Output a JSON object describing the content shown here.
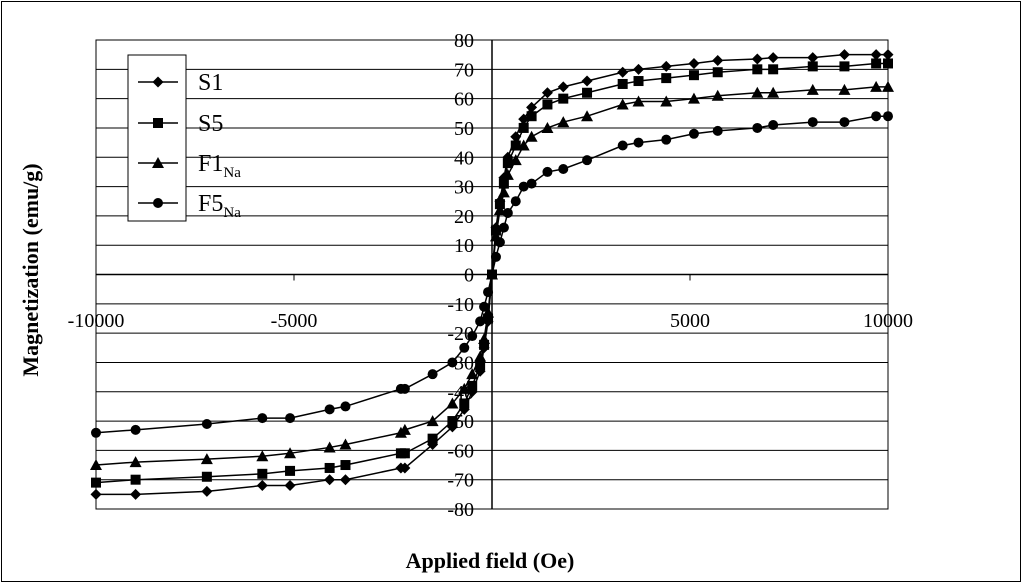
{
  "chart_data": {
    "type": "scatter",
    "xlabel": "Applied field (Oe)",
    "ylabel": "Magnetization (emu/g)",
    "xlim": [
      -10000,
      10000
    ],
    "ylim": [
      -80,
      80
    ],
    "x_ticks": [
      "-10000",
      "-5000",
      "0",
      "5000",
      "10000"
    ],
    "y_ticks": [
      "80",
      "70",
      "60",
      "50",
      "40",
      "30",
      "20",
      "10",
      "0",
      "-10",
      "-20",
      "-30",
      "-40",
      "-50",
      "-60",
      "-70",
      "-80"
    ],
    "grid": "horizontal",
    "legend_position": "top-left",
    "series": [
      {
        "name": "S1",
        "marker": "diamond",
        "x": [
          -10000,
          -9000,
          -7200,
          -5800,
          -5100,
          -4100,
          -3700,
          -2300,
          -2200,
          -1500,
          -1000,
          -700,
          -500,
          -300,
          -200,
          -100,
          0,
          100,
          200,
          300,
          400,
          600,
          800,
          1000,
          1400,
          1800,
          2400,
          3300,
          3700,
          4400,
          5100,
          5700,
          6700,
          7100,
          8100,
          8900,
          9700,
          10000
        ],
        "y": [
          -75,
          -75,
          -74,
          -72,
          -72,
          -70,
          -70,
          -66,
          -66,
          -58,
          -52,
          -46,
          -40,
          -33,
          -25,
          -16,
          0,
          16,
          25,
          33,
          40,
          47,
          53,
          57,
          62,
          64,
          66,
          69,
          70,
          71,
          72,
          73,
          73.5,
          74,
          74,
          75,
          75,
          75
        ]
      },
      {
        "name": "S5",
        "marker": "square",
        "x": [
          -10000,
          -9000,
          -7200,
          -5800,
          -5100,
          -4100,
          -3700,
          -2300,
          -2200,
          -1500,
          -1000,
          -700,
          -500,
          -300,
          -200,
          -100,
          0,
          100,
          200,
          300,
          400,
          600,
          800,
          1000,
          1400,
          1800,
          2400,
          3300,
          3700,
          4400,
          5100,
          5700,
          6700,
          7100,
          8100,
          8900,
          9700,
          10000
        ],
        "y": [
          -71,
          -70,
          -69,
          -68,
          -67,
          -66,
          -65,
          -61,
          -61,
          -56,
          -50,
          -44,
          -38,
          -31,
          -24,
          -15,
          0,
          15,
          24,
          31,
          38,
          44,
          50,
          54,
          58,
          60,
          62,
          65,
          66,
          67,
          68,
          69,
          70,
          70,
          71,
          71,
          72,
          72
        ]
      },
      {
        "name": "F1Na",
        "name_main": "F1",
        "name_sub": "Na",
        "marker": "triangle",
        "x": [
          -10000,
          -9000,
          -7200,
          -5800,
          -5100,
          -4100,
          -3700,
          -2300,
          -2200,
          -1500,
          -1000,
          -700,
          -500,
          -300,
          -200,
          -100,
          0,
          100,
          200,
          300,
          400,
          600,
          800,
          1000,
          1400,
          1800,
          2400,
          3300,
          3700,
          4400,
          5100,
          5700,
          6700,
          7100,
          8100,
          8900,
          9700,
          10000
        ],
        "y": [
          -65,
          -64,
          -63,
          -62,
          -61,
          -59,
          -58,
          -54,
          -53,
          -50,
          -44,
          -39,
          -34,
          -28,
          -22,
          -13,
          0,
          13,
          22,
          28,
          34,
          39,
          44,
          47,
          50,
          52,
          54,
          58,
          59,
          59,
          60,
          61,
          62,
          62,
          63,
          63,
          64,
          64
        ]
      },
      {
        "name": "F5Na",
        "name_main": "F5",
        "name_sub": "Na",
        "marker": "circle",
        "x": [
          -10000,
          -9000,
          -7200,
          -5800,
          -5100,
          -4100,
          -3700,
          -2300,
          -2200,
          -1500,
          -1000,
          -700,
          -500,
          -300,
          -200,
          -100,
          0,
          100,
          200,
          300,
          400,
          600,
          800,
          1000,
          1400,
          1800,
          2400,
          3300,
          3700,
          4400,
          5100,
          5700,
          6700,
          7100,
          8100,
          8900,
          9700,
          10000
        ],
        "y": [
          -54,
          -53,
          -51,
          -49,
          -49,
          -46,
          -45,
          -39,
          -39,
          -34,
          -30,
          -25,
          -21,
          -16,
          -11,
          -6,
          0,
          6,
          11,
          16,
          21,
          25,
          30,
          31,
          35,
          36,
          39,
          44,
          45,
          46,
          48,
          49,
          50,
          51,
          52,
          52,
          54,
          54
        ]
      }
    ]
  }
}
